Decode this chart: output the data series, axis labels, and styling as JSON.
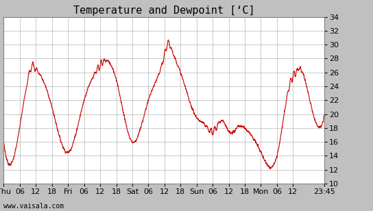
{
  "title": "Temperature and Dewpoint [‘C]",
  "yticks": [
    10,
    12,
    14,
    16,
    18,
    20,
    22,
    24,
    26,
    28,
    30,
    32,
    34
  ],
  "ylim": [
    10,
    34
  ],
  "line_color": "#cc0000",
  "line_width": 0.8,
  "fig_facecolor": "#c0c0c0",
  "plot_facecolor": "#ffffff",
  "grid_color": "#c0c0c0",
  "watermark": "www.vaisala.com",
  "xtick_labels": [
    "Thu",
    "06",
    "12",
    "18",
    "Fri",
    "06",
    "12",
    "18",
    "Sat",
    "06",
    "12",
    "18",
    "Sun",
    "06",
    "12",
    "18",
    "Mon",
    "06",
    "12",
    "23:45"
  ],
  "xtick_positions": [
    0,
    6,
    12,
    18,
    24,
    30,
    36,
    42,
    48,
    54,
    60,
    66,
    72,
    78,
    84,
    90,
    96,
    102,
    108,
    119.75
  ],
  "xlim": [
    0,
    119.75
  ],
  "title_fontsize": 11,
  "tick_fontsize": 8,
  "watermark_fontsize": 7,
  "keypoints": [
    [
      0,
      16.0
    ],
    [
      3,
      13.0
    ],
    [
      9,
      25.0
    ],
    [
      11,
      27.0
    ],
    [
      12,
      26.5
    ],
    [
      13,
      26.0
    ],
    [
      18,
      21.0
    ],
    [
      24,
      14.5
    ],
    [
      30,
      22.0
    ],
    [
      36,
      27.0
    ],
    [
      37,
      27.5
    ],
    [
      42,
      25.0
    ],
    [
      48,
      16.0
    ],
    [
      54,
      22.0
    ],
    [
      60,
      28.5
    ],
    [
      61,
      30.0
    ],
    [
      63,
      29.0
    ],
    [
      66,
      26.0
    ],
    [
      72,
      19.5
    ],
    [
      75,
      18.5
    ],
    [
      78,
      17.5
    ],
    [
      80,
      18.5
    ],
    [
      82,
      19.0
    ],
    [
      84,
      17.5
    ],
    [
      86,
      17.5
    ],
    [
      87,
      18.0
    ],
    [
      90,
      18.0
    ],
    [
      96,
      14.5
    ],
    [
      102,
      14.0
    ],
    [
      106,
      23.0
    ],
    [
      108,
      25.5
    ],
    [
      109,
      26.0
    ],
    [
      110,
      26.5
    ],
    [
      112,
      25.5
    ],
    [
      114,
      22.5
    ],
    [
      119.75,
      20.0
    ]
  ]
}
